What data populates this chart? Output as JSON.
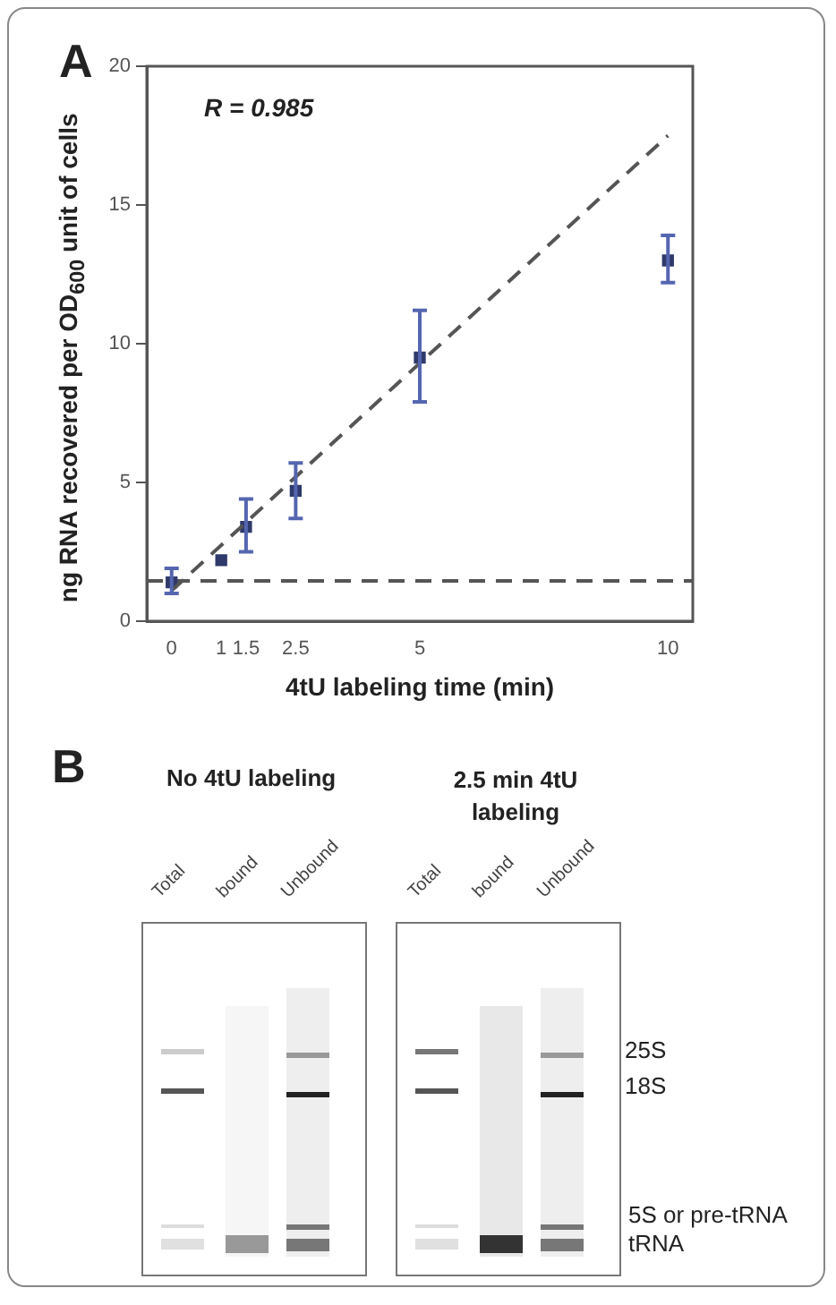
{
  "chart_data": [
    {
      "type": "scatter",
      "xlabel": "4tU labeling time (min)",
      "ylabel": "ng RNA recovered per OD$_{600}$ unit of cells",
      "xlim": [
        -0.5,
        10.5
      ],
      "ylim": [
        0,
        20
      ],
      "xticks": [
        0,
        1,
        1.5,
        2.5,
        5,
        10
      ],
      "yticks": [
        0,
        5,
        10,
        15,
        20
      ],
      "grid": false,
      "annotations": [
        "A",
        "R = 0.985"
      ],
      "ref_lines": [
        {
          "axis": "y",
          "value": 1.45,
          "color": "#555555",
          "line_style": "dashed"
        }
      ],
      "series": [
        {
          "type": "line",
          "color": "#555555",
          "line_style": "dashed",
          "marker": "none",
          "x": [
            0,
            10
          ],
          "values": [
            1.1,
            17.5
          ]
        },
        {
          "type": "scatter",
          "color": "#2f3a6b",
          "marker": "square",
          "x": [
            0,
            1,
            1.5,
            2.5,
            5,
            10
          ],
          "values": [
            1.4,
            2.2,
            3.4,
            4.7,
            9.5,
            13.0
          ],
          "errors": [
            [
              1.0,
              1.9
            ],
            null,
            [
              2.5,
              4.4
            ],
            [
              3.7,
              5.7
            ],
            [
              7.9,
              11.2
            ],
            [
              12.2,
              13.9
            ]
          ]
        }
      ]
    },
    {
      "type": "other",
      "annotations": [
        "B",
        "No 4tU labeling",
        "2.5 min 4tU labeling",
        "Total",
        "bound",
        "Unbound",
        "Total",
        "bound",
        "Unbound",
        "25S",
        "18S",
        "5S or pre-tRNA",
        "tRNA"
      ]
    }
  ]
}
